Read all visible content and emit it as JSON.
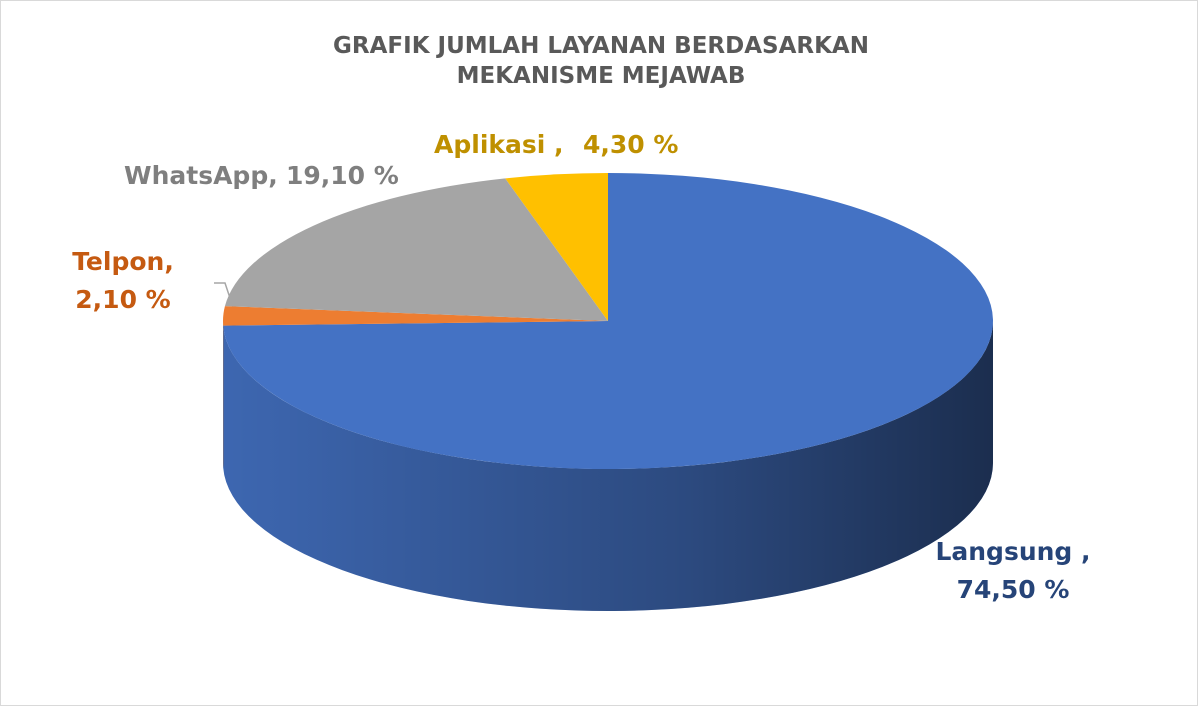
{
  "chart_data": {
    "type": "pie",
    "title": "GRAFIK JUMLAH LAYANAN BERDASARKAN MEKANISME MEJAWAB",
    "categories": [
      "Langsung ,",
      "Telpon,",
      "WhatsApp,",
      "Aplikasi ,"
    ],
    "values": [
      74.5,
      2.1,
      19.1,
      4.3
    ],
    "value_labels": [
      "74,50 %",
      "2,10 %",
      "19,10 %",
      "4,30 %"
    ],
    "colors": [
      "#4472c4",
      "#ed7d31",
      "#a5a5a5",
      "#ffc000"
    ],
    "label_colors": [
      "#264478",
      "#c55a11",
      "#7f7f7f",
      "#bf9000"
    ]
  }
}
